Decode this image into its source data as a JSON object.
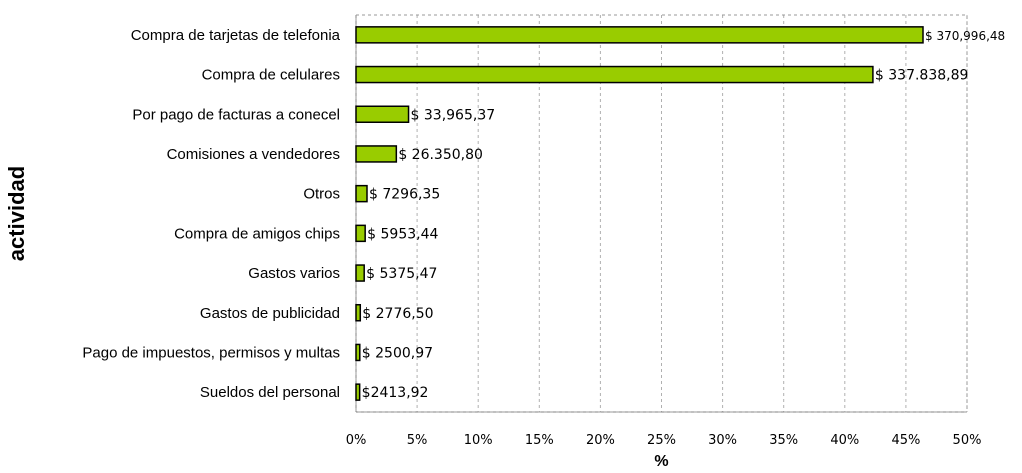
{
  "chart_data": {
    "type": "bar",
    "orientation": "horizontal",
    "xlabel": "%",
    "ylabel": "actividad",
    "xlim": [
      0,
      50
    ],
    "x_ticks": [
      "0%",
      "5%",
      "10%",
      "15%",
      "20%",
      "25%",
      "30%",
      "35%",
      "40%",
      "45%",
      "50%"
    ],
    "grid": true,
    "legend": "none",
    "bar_color": "#99cc00",
    "bar_edge_color": "#000000",
    "categories": [
      "Compra de tarjetas de telefonia",
      "Compra de celulares",
      "Por pago de facturas a conecel",
      "Comisiones a vendedores",
      "Otros",
      "Compra de amigos chips",
      "Gastos varios",
      "Gastos de publicidad",
      "Pago de impuestos, permisos y multas",
      "Sueldos del personal"
    ],
    "values": [
      46.4,
      42.3,
      4.3,
      3.3,
      0.9,
      0.75,
      0.67,
      0.35,
      0.31,
      0.3
    ],
    "data_labels": [
      "$ 370,996,48",
      "$ 337.838,89",
      "$ 33,965,37",
      "$ 26.350,80",
      "$ 7296,35",
      "$ 5953,44",
      "$ 5375,47",
      "$ 2776,50",
      "$ 2500,97",
      "$2413,92"
    ]
  }
}
